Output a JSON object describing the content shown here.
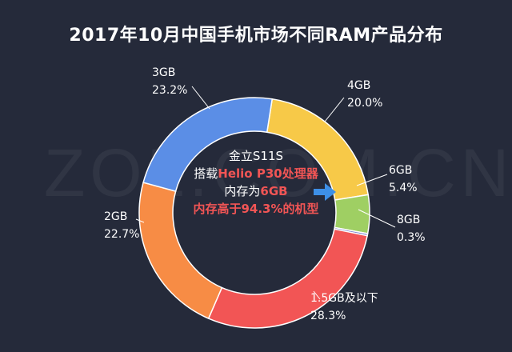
{
  "chart_data": {
    "type": "pie",
    "title": "2017年10月中国手机市场不同RAM产品分布",
    "watermark": "ZOL.COM.CN",
    "slices": [
      {
        "label": "4GB",
        "value": 20.0,
        "value_text": "20.0%",
        "color": "#f7c948"
      },
      {
        "label": "6GB",
        "value": 5.4,
        "value_text": "5.4%",
        "color": "#9fcf63"
      },
      {
        "label": "8GB",
        "value": 0.3,
        "value_text": "0.3%",
        "color": "#7d86cf"
      },
      {
        "label": "1.5GB及以下",
        "value": 28.3,
        "value_text": "28.3%",
        "color": "#f25555"
      },
      {
        "label": "2GB",
        "value": 22.7,
        "value_text": "22.7%",
        "color": "#f78c45"
      },
      {
        "label": "3GB",
        "value": 23.2,
        "value_text": "23.2%",
        "color": "#5b8ee6"
      }
    ],
    "center_annotation": {
      "line1": "金立S11S",
      "line2_prefix": "搭载",
      "line2_highlight": "Helio P30处理器",
      "line3_prefix": "内存为",
      "line3_highlight": "6GB",
      "line4": "内存高于94.3%的机型"
    },
    "arrow_color": "#3d8fe6"
  }
}
